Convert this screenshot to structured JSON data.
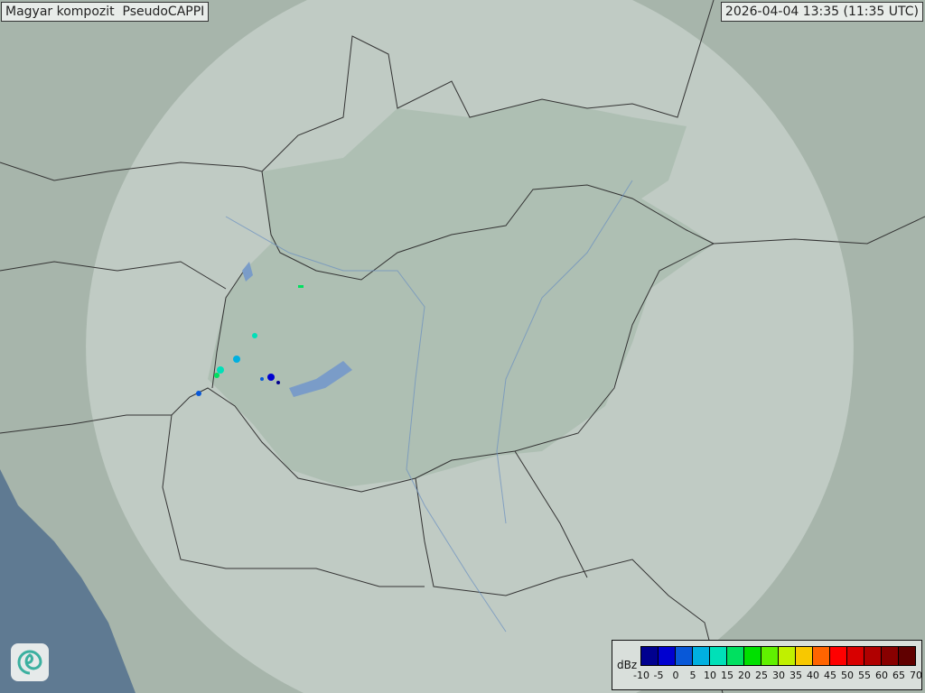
{
  "title": "Magyar kompozit  PseudoCAPPI",
  "timestamp": "2026-04-04 13:35 (11:35 UTC)",
  "legend": {
    "unit": "dBz",
    "ticks": [
      "-10",
      "-5",
      "0",
      "5",
      "10",
      "15",
      "20",
      "25",
      "30",
      "35",
      "40",
      "45",
      "50",
      "55",
      "60",
      "65",
      "70"
    ],
    "colors": [
      "#00008f",
      "#0000d0",
      "#0858d8",
      "#00b0e0",
      "#00e0b8",
      "#00e060",
      "#00e000",
      "#60f000",
      "#c0f000",
      "#f8c800",
      "#ff6400",
      "#ff0000",
      "#d80000",
      "#b00000",
      "#880000",
      "#600000"
    ]
  },
  "logo_icon": "swirl-logo-icon",
  "map_colors": {
    "land": "#a7b5ab",
    "radar_coverage": "#c8d3cc",
    "hungary": "#a2b8a9",
    "sea": "#5f7a92",
    "borders": "#333333"
  }
}
